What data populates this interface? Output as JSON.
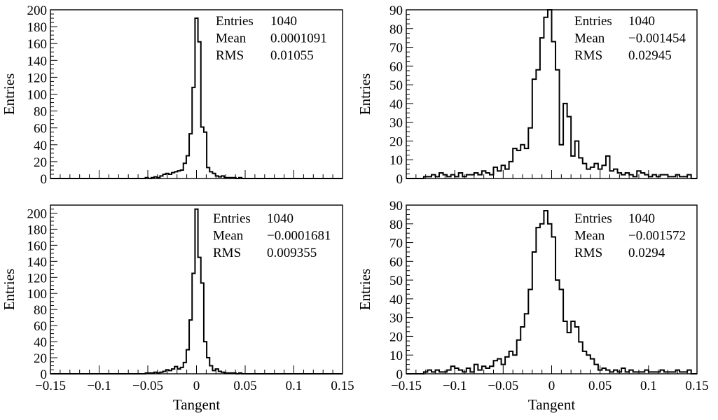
{
  "chart_data": [
    {
      "type": "histogram",
      "panel": "top-left",
      "ylabel": "Entries",
      "xlabel": "",
      "xlim": [
        -0.15,
        0.15
      ],
      "ylim": [
        0,
        200
      ],
      "yticks": [
        0,
        20,
        40,
        60,
        80,
        100,
        120,
        140,
        160,
        180,
        200
      ],
      "xticks": [],
      "stats": [
        {
          "label": "Entries",
          "value": "1040"
        },
        {
          "label": "Mean",
          "value": "0.0001091"
        },
        {
          "label": "RMS",
          "value": "0.01055"
        }
      ],
      "bin_width": 0.003,
      "x": [
        -0.051,
        -0.048,
        -0.045,
        -0.042,
        -0.039,
        -0.036,
        -0.033,
        -0.03,
        -0.027,
        -0.024,
        -0.021,
        -0.018,
        -0.015,
        -0.012,
        -0.009,
        -0.006,
        -0.003,
        0.0,
        0.003,
        0.006,
        0.009,
        0.012,
        0.015,
        0.018,
        0.021,
        0.024,
        0.027,
        0.03,
        0.033,
        0.036,
        0.039,
        0.042,
        0.045
      ],
      "values": [
        1,
        0,
        1,
        2,
        1,
        3,
        5,
        6,
        5,
        7,
        8,
        9,
        10,
        18,
        27,
        53,
        108,
        190,
        162,
        61,
        55,
        13,
        8,
        6,
        3,
        2,
        3,
        1,
        1,
        1,
        1,
        0,
        1
      ]
    },
    {
      "type": "histogram",
      "panel": "top-right",
      "ylabel": "Entries",
      "xlabel": "",
      "xlim": [
        -0.15,
        0.15
      ],
      "ylim": [
        0,
        90
      ],
      "yticks": [
        0,
        10,
        20,
        30,
        40,
        50,
        60,
        70,
        80,
        90
      ],
      "xticks": [],
      "stats": [
        {
          "label": "Entries",
          "value": "1040"
        },
        {
          "label": "Mean",
          "value": "−0.001454"
        },
        {
          "label": "RMS",
          "value": "0.02945"
        }
      ],
      "bin_width": 0.004,
      "x": [
        -0.13,
        -0.126,
        -0.122,
        -0.118,
        -0.114,
        -0.11,
        -0.106,
        -0.102,
        -0.098,
        -0.094,
        -0.09,
        -0.086,
        -0.082,
        -0.078,
        -0.074,
        -0.07,
        -0.066,
        -0.062,
        -0.058,
        -0.054,
        -0.05,
        -0.046,
        -0.042,
        -0.038,
        -0.034,
        -0.03,
        -0.026,
        -0.022,
        -0.018,
        -0.014,
        -0.01,
        -0.006,
        -0.002,
        0.002,
        0.006,
        0.01,
        0.014,
        0.018,
        0.022,
        0.026,
        0.03,
        0.034,
        0.038,
        0.042,
        0.046,
        0.05,
        0.054,
        0.058,
        0.062,
        0.066,
        0.07,
        0.074,
        0.078,
        0.082,
        0.086,
        0.09,
        0.094,
        0.098,
        0.102,
        0.106,
        0.11,
        0.114,
        0.118,
        0.122,
        0.126,
        0.13,
        0.134,
        0.138,
        0.142
      ],
      "values": [
        1,
        1,
        2,
        1,
        3,
        2,
        1,
        2,
        1,
        3,
        1,
        2,
        2,
        3,
        2,
        4,
        3,
        2,
        6,
        4,
        7,
        5,
        9,
        16,
        15,
        18,
        16,
        27,
        53,
        58,
        75,
        86,
        91,
        73,
        58,
        18,
        40,
        33,
        12,
        20,
        11,
        8,
        5,
        6,
        8,
        5,
        7,
        12,
        4,
        5,
        3,
        2,
        3,
        2,
        1,
        4,
        3,
        2,
        1,
        2,
        1,
        2,
        2,
        1,
        1,
        2,
        1,
        1,
        2
      ]
    },
    {
      "type": "histogram",
      "panel": "bottom-left",
      "ylabel": "Entries",
      "xlabel": "Tangent",
      "xlim": [
        -0.15,
        0.15
      ],
      "ylim": [
        0,
        210
      ],
      "yticks": [
        0,
        20,
        40,
        60,
        80,
        100,
        120,
        140,
        160,
        180,
        200
      ],
      "xticks": [
        "−0.15",
        "−0.1",
        "−0.05",
        "0",
        "0.05",
        "0.1",
        "0.15"
      ],
      "stats": [
        {
          "label": "Entries",
          "value": "1040"
        },
        {
          "label": "Mean",
          "value": "−0.0001681"
        },
        {
          "label": "RMS",
          "value": "0.009355"
        }
      ],
      "bin_width": 0.003,
      "x": [
        -0.051,
        -0.048,
        -0.045,
        -0.042,
        -0.039,
        -0.036,
        -0.033,
        -0.03,
        -0.027,
        -0.024,
        -0.021,
        -0.018,
        -0.015,
        -0.012,
        -0.009,
        -0.006,
        -0.003,
        0.0,
        0.003,
        0.006,
        0.009,
        0.012,
        0.015,
        0.018,
        0.021,
        0.024,
        0.027,
        0.03,
        0.033,
        0.036,
        0.039,
        0.042,
        0.045
      ],
      "values": [
        1,
        1,
        1,
        2,
        1,
        2,
        3,
        5,
        4,
        6,
        9,
        6,
        8,
        14,
        30,
        67,
        125,
        205,
        145,
        113,
        40,
        20,
        10,
        4,
        6,
        3,
        2,
        1,
        1,
        1,
        1,
        0,
        1
      ]
    },
    {
      "type": "histogram",
      "panel": "bottom-right",
      "ylabel": "Entries",
      "xlabel": "Tangent",
      "xlim": [
        -0.15,
        0.15
      ],
      "ylim": [
        0,
        90
      ],
      "yticks": [
        0,
        10,
        20,
        30,
        40,
        50,
        60,
        70,
        80,
        90
      ],
      "xticks": [
        "−0.15",
        "−0.1",
        "−0.05",
        "0",
        "0.05",
        "0.1",
        "0.15"
      ],
      "stats": [
        {
          "label": "Entries",
          "value": "1040"
        },
        {
          "label": "Mean",
          "value": "−0.001572"
        },
        {
          "label": "RMS",
          "value": "0.0294"
        }
      ],
      "bin_width": 0.004,
      "x": [
        -0.13,
        -0.126,
        -0.122,
        -0.118,
        -0.114,
        -0.11,
        -0.106,
        -0.102,
        -0.098,
        -0.094,
        -0.09,
        -0.086,
        -0.082,
        -0.078,
        -0.074,
        -0.07,
        -0.066,
        -0.062,
        -0.058,
        -0.054,
        -0.05,
        -0.046,
        -0.042,
        -0.038,
        -0.034,
        -0.03,
        -0.026,
        -0.022,
        -0.018,
        -0.014,
        -0.01,
        -0.006,
        -0.002,
        0.002,
        0.006,
        0.01,
        0.014,
        0.018,
        0.022,
        0.026,
        0.03,
        0.034,
        0.038,
        0.042,
        0.046,
        0.05,
        0.054,
        0.058,
        0.062,
        0.066,
        0.07,
        0.074,
        0.078,
        0.082,
        0.086,
        0.09,
        0.094,
        0.098,
        0.102,
        0.106,
        0.11,
        0.114,
        0.118,
        0.122,
        0.126,
        0.13,
        0.134,
        0.138,
        0.142
      ],
      "values": [
        1,
        2,
        1,
        2,
        1,
        1,
        2,
        4,
        3,
        2,
        1,
        3,
        1,
        5,
        2,
        4,
        3,
        4,
        7,
        8,
        5,
        9,
        12,
        10,
        18,
        25,
        32,
        45,
        65,
        78,
        80,
        87,
        80,
        73,
        50,
        45,
        28,
        22,
        28,
        25,
        17,
        12,
        10,
        8,
        5,
        2,
        3,
        2,
        1,
        2,
        1,
        3,
        1,
        2,
        1,
        1,
        1,
        2,
        1,
        1,
        1,
        2,
        1,
        1,
        1,
        2,
        1,
        1,
        2
      ]
    }
  ]
}
